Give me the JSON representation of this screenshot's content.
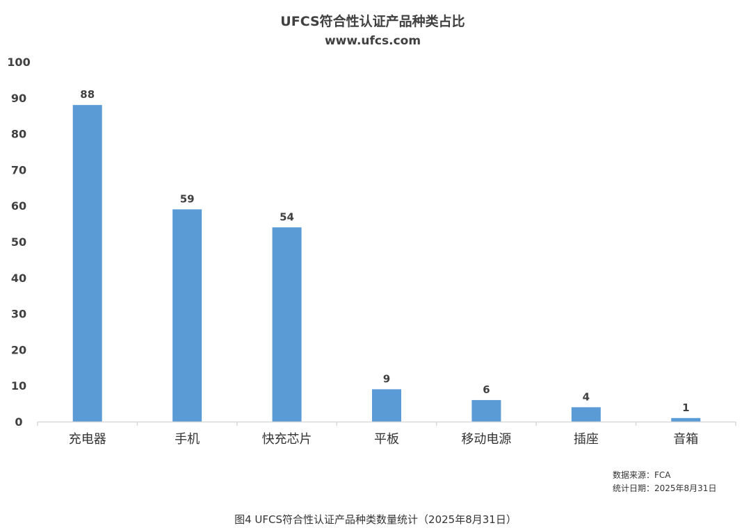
{
  "chart_data": {
    "type": "bar",
    "title": "UFCS符合性认证产品种类占比",
    "subtitle": "www.ufcs.com",
    "categories": [
      "充电器",
      "手机",
      "快充芯片",
      "平板",
      "移动电源",
      "插座",
      "音箱"
    ],
    "values": [
      88,
      59,
      54,
      9,
      6,
      4,
      1
    ],
    "ylim": [
      0,
      100
    ],
    "yticks": [
      0,
      10,
      20,
      30,
      40,
      50,
      60,
      70,
      80,
      90,
      100
    ],
    "xlabel": "",
    "ylabel": "",
    "grid": false,
    "data_labels": true,
    "bar_color": "#5b9bd5",
    "axis_color": "#d9d9d9"
  },
  "source": {
    "data_source": "数据来源：FCA",
    "stat_date": "统计日期：2025年8月31日"
  },
  "caption": "图4 UFCS符合性认证产品种类数量统计（2025年8月31日）"
}
